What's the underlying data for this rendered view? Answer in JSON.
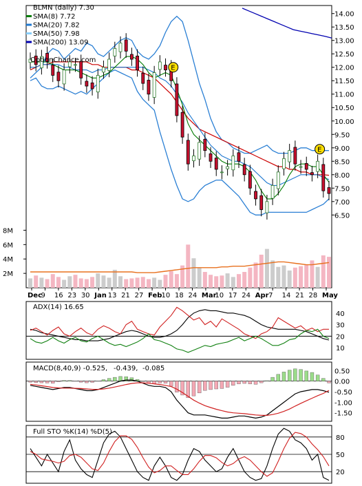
{
  "chart_data": [
    {
      "type": "candlestick",
      "title": "BLMN (daily) 7.30",
      "watermark": "OptionChance.com",
      "legend": [
        {
          "label": "SMA(8) 7.72",
          "color": "#007a00"
        },
        {
          "label": "SMA(20) 7.82",
          "color": "#1e78d0"
        },
        {
          "label": "SMA(50) 7.98",
          "color": "#87cefa"
        },
        {
          "label": "SMA(200) 13.09",
          "color": "#0000b0"
        }
      ],
      "y_ticks": [
        "14.00",
        "13.50",
        "13.00",
        "12.50",
        "12.00",
        "11.50",
        "11.00",
        "10.50",
        "10.00",
        "9.50",
        "9.00",
        "8.50",
        "8.00",
        "7.50",
        "7.00",
        "6.50"
      ],
      "ylim": [
        6.2,
        14.3
      ],
      "earnings_markers": [
        "E",
        "E"
      ],
      "x_ticks": [
        "Dec",
        "9",
        "16",
        "23",
        "30",
        "Jan",
        "13",
        "21",
        "27",
        "Feb",
        "10",
        "18",
        "24",
        "Mar",
        "10",
        "17",
        "24",
        "Apr",
        "7",
        "14",
        "21",
        "28",
        "May"
      ],
      "candles_close": [
        12.3,
        12.1,
        12.4,
        12.2,
        11.7,
        11.5,
        11.9,
        12.2,
        12.1,
        11.6,
        11.3,
        11.2,
        11.7,
        12.0,
        12.3,
        12.7,
        12.9,
        12.6,
        12.3,
        11.9,
        11.4,
        11.0,
        11.8,
        12.2,
        11.9,
        11.5,
        10.2,
        9.4,
        8.4,
        8.7,
        9.2,
        8.9,
        8.5,
        8.2,
        8.1,
        8.3,
        8.7,
        8.5,
        8.0,
        7.5,
        7.1,
        6.7,
        7.0,
        7.6,
        8.1,
        8.6,
        8.9,
        8.4,
        8.3,
        8.2,
        8.0,
        8.5,
        7.4,
        7.3
      ],
      "sma8": [
        12.2,
        12.2,
        12.2,
        12.2,
        12.1,
        12.0,
        11.9,
        11.9,
        11.9,
        11.8,
        11.7,
        11.6,
        11.6,
        11.7,
        11.8,
        12.0,
        12.2,
        12.4,
        12.4,
        12.3,
        12.1,
        11.8,
        11.6,
        11.7,
        11.8,
        11.7,
        11.2,
        10.6,
        9.9,
        9.5,
        9.3,
        9.1,
        8.9,
        8.7,
        8.5,
        8.4,
        8.4,
        8.4,
        8.3,
        8.1,
        7.8,
        7.4,
        7.1,
        7.1,
        7.3,
        7.6,
        8.0,
        8.3,
        8.4,
        8.4,
        8.3,
        8.3,
        8.0,
        7.72
      ],
      "sma20": [
        12.0,
        12.0,
        12.1,
        12.1,
        12.1,
        12.1,
        12.0,
        12.0,
        11.9,
        11.9,
        11.9,
        11.8,
        11.9,
        11.9,
        12.0,
        12.0,
        12.0,
        12.0,
        12.0,
        12.0,
        12.0,
        11.9,
        11.8,
        11.6,
        11.5,
        11.3,
        11.0,
        10.7,
        10.3,
        10.0,
        9.7,
        9.4,
        9.1,
        8.9,
        8.7,
        8.6,
        8.5,
        8.5,
        8.4,
        8.3,
        8.1,
        7.9,
        7.7,
        7.6,
        7.6,
        7.7,
        7.8,
        7.9,
        8.0,
        8.0,
        8.0,
        8.0,
        7.9,
        7.82
      ],
      "sma50": [
        11.9,
        12.0,
        12.1,
        12.1,
        12.2,
        12.2,
        12.2,
        12.2,
        12.2,
        12.2,
        12.2,
        12.1,
        12.1,
        12.0,
        12.0,
        12.0,
        12.0,
        12.0,
        11.9,
        11.9,
        11.8,
        11.7,
        11.6,
        11.4,
        11.2,
        11.0,
        10.7,
        10.4,
        10.1,
        9.9,
        9.7,
        9.6,
        9.5,
        9.4,
        9.3,
        9.2,
        9.1,
        9.0,
        8.9,
        8.8,
        8.7,
        8.6,
        8.5,
        8.4,
        8.3,
        8.3,
        8.2,
        8.2,
        8.1,
        8.1,
        8.0,
        8.0,
        8.0,
        7.98
      ],
      "sma200_segment": [
        14.2,
        14.1,
        14.0,
        13.9,
        13.8,
        13.7,
        13.6,
        13.5,
        13.4,
        13.35,
        13.3,
        13.25,
        13.2,
        13.15,
        13.09
      ],
      "bb_upper": [
        11.6,
        11.8,
        12.0,
        12.5,
        12.7,
        12.6,
        12.3,
        12.5,
        12.7,
        12.6,
        12.9,
        12.8,
        12.5,
        12.4,
        12.6,
        12.8,
        13.0,
        13.1,
        13.0,
        12.6,
        12.4,
        12.3,
        12.5,
        12.8,
        13.3,
        13.7,
        13.9,
        13.7,
        13.0,
        12.2,
        11.4,
        10.8,
        10.1,
        9.6,
        9.3,
        9.2,
        9.0,
        8.9,
        8.8,
        8.8,
        8.9,
        9.0,
        9.1,
        8.9,
        8.8,
        8.8,
        8.8,
        8.9,
        9.0,
        9.0,
        8.9,
        8.9,
        8.9,
        8.9
      ],
      "bb_lower": [
        11.5,
        11.6,
        11.3,
        11.2,
        11.2,
        11.3,
        11.2,
        11.1,
        11.0,
        11.1,
        11.0,
        11.2,
        11.4,
        11.6,
        11.8,
        11.9,
        11.8,
        11.7,
        11.6,
        11.1,
        10.8,
        10.6,
        10.4,
        9.6,
        8.9,
        8.2,
        7.6,
        7.1,
        7.0,
        7.1,
        7.4,
        7.6,
        7.7,
        7.8,
        7.8,
        7.6,
        7.4,
        7.2,
        6.9,
        6.6,
        6.5,
        6.5,
        6.6,
        6.6,
        6.6,
        6.6,
        6.6,
        6.6,
        6.6,
        6.6,
        6.7,
        6.8,
        6.9,
        7.1
      ]
    },
    {
      "type": "bar",
      "name": "volume",
      "y_ticks": [
        "8M",
        "6M",
        "4M",
        "2M"
      ],
      "ylim": [
        0,
        9
      ],
      "values": [
        1.3,
        1.7,
        1.4,
        1.2,
        1.9,
        1.5,
        1.1,
        1.6,
        1.8,
        1.3,
        1.2,
        1.5,
        2.0,
        1.7,
        1.4,
        2.5,
        1.6,
        1.2,
        1.3,
        1.4,
        1.5,
        1.2,
        1.4,
        1.1,
        1.8,
        2.3,
        1.9,
        3.1,
        6.0,
        4.1,
        2.8,
        2.2,
        1.8,
        1.6,
        1.7,
        2.0,
        1.5,
        1.9,
        2.2,
        2.8,
        3.5,
        4.6,
        5.4,
        3.8,
        2.9,
        3.1,
        2.4,
        2.8,
        3.0,
        3.2,
        3.8,
        2.9,
        4.5,
        4.3
      ],
      "avg_line": [
        2.2,
        2.2,
        2.2,
        2.2,
        2.2,
        2.2,
        2.2,
        2.2,
        2.2,
        2.2,
        2.2,
        2.2,
        2.2,
        2.2,
        2.2,
        2.2,
        2.2,
        2.2,
        2.2,
        2.1,
        2.1,
        2.1,
        2.1,
        2.2,
        2.3,
        2.4,
        2.5,
        2.6,
        2.7,
        2.8,
        2.8,
        2.8,
        2.8,
        2.8,
        2.9,
        2.9,
        3.0,
        3.0,
        3.0,
        3.1,
        3.2,
        3.3,
        3.4,
        3.5,
        3.6,
        3.6,
        3.5,
        3.4,
        3.3,
        3.2,
        3.2,
        3.3,
        3.4,
        3.5
      ]
    },
    {
      "type": "line",
      "title": "ADX(14) 16.65",
      "y_ticks": [
        "40",
        "30",
        "20",
        "10"
      ],
      "ylim": [
        0,
        50
      ],
      "series": [
        {
          "color": "#000000",
          "values": [
            26,
            25,
            23,
            22,
            21,
            20,
            19,
            18,
            17,
            17,
            16,
            16,
            16,
            17,
            18,
            20,
            22,
            24,
            25,
            24,
            22,
            20,
            19,
            19,
            20,
            22,
            25,
            30,
            36,
            40,
            42,
            43,
            42,
            42,
            41,
            40,
            40,
            39,
            38,
            36,
            33,
            30,
            28,
            27,
            26,
            26,
            26,
            26,
            25,
            24,
            22,
            20,
            18,
            16.65
          ]
        },
        {
          "color": "#d02020",
          "values": [
            25,
            27,
            24,
            21,
            25,
            28,
            22,
            20,
            24,
            27,
            23,
            21,
            26,
            29,
            27,
            24,
            22,
            30,
            33,
            26,
            24,
            22,
            21,
            28,
            33,
            38,
            45,
            42,
            38,
            34,
            36,
            30,
            33,
            28,
            35,
            32,
            29,
            26,
            22,
            20,
            18,
            22,
            24,
            28,
            36,
            33,
            30,
            27,
            29,
            25,
            27,
            24,
            26,
            26
          ]
        },
        {
          "color": "#108010",
          "values": [
            18,
            15,
            14,
            16,
            19,
            16,
            14,
            17,
            19,
            16,
            15,
            18,
            20,
            17,
            14,
            12,
            13,
            11,
            13,
            15,
            18,
            22,
            17,
            16,
            14,
            12,
            9,
            8,
            6,
            8,
            10,
            12,
            11,
            13,
            14,
            15,
            17,
            19,
            16,
            18,
            20,
            18,
            15,
            12,
            12,
            14,
            17,
            18,
            22,
            25,
            24,
            26,
            20,
            18
          ]
        }
      ],
      "hline": 20
    },
    {
      "type": "line",
      "title": "MACD(8,40,9) -0.525,",
      "values_text": [
        "-0.439,",
        "-0.085"
      ],
      "values_colors": [
        "#e00000",
        "#0044cc"
      ],
      "y_ticks": [
        "0.50",
        "0.00",
        "-0.50",
        "-1.00",
        "-1.50"
      ],
      "ylim": [
        -1.9,
        0.9
      ],
      "series": [
        {
          "color": "#000000",
          "values": [
            -0.2,
            -0.25,
            -0.3,
            -0.35,
            -0.4,
            -0.35,
            -0.3,
            -0.3,
            -0.35,
            -0.4,
            -0.45,
            -0.45,
            -0.4,
            -0.3,
            -0.2,
            -0.1,
            0.0,
            0.05,
            0.05,
            0.0,
            -0.1,
            -0.2,
            -0.25,
            -0.25,
            -0.3,
            -0.5,
            -0.9,
            -1.2,
            -1.5,
            -1.6,
            -1.6,
            -1.6,
            -1.65,
            -1.7,
            -1.75,
            -1.75,
            -1.7,
            -1.65,
            -1.65,
            -1.7,
            -1.75,
            -1.7,
            -1.6,
            -1.4,
            -1.2,
            -1.0,
            -0.8,
            -0.6,
            -0.5,
            -0.45,
            -0.4,
            -0.4,
            -0.45,
            -0.525
          ]
        },
        {
          "color": "#d02020",
          "values": [
            -0.15,
            -0.18,
            -0.22,
            -0.26,
            -0.3,
            -0.32,
            -0.33,
            -0.33,
            -0.34,
            -0.35,
            -0.37,
            -0.39,
            -0.39,
            -0.37,
            -0.33,
            -0.28,
            -0.22,
            -0.16,
            -0.11,
            -0.08,
            -0.08,
            -0.1,
            -0.13,
            -0.16,
            -0.2,
            -0.26,
            -0.38,
            -0.54,
            -0.72,
            -0.9,
            -1.04,
            -1.16,
            -1.25,
            -1.33,
            -1.4,
            -1.46,
            -1.5,
            -1.52,
            -1.54,
            -1.57,
            -1.6,
            -1.62,
            -1.62,
            -1.58,
            -1.52,
            -1.43,
            -1.32,
            -1.18,
            -1.05,
            -0.93,
            -0.81,
            -0.69,
            -0.58,
            -0.439
          ]
        }
      ]
    },
    {
      "type": "line",
      "title": "Full STO %K(14) %D(5)",
      "y_ticks": [
        "80",
        "50",
        "20"
      ],
      "ylim": [
        0,
        100
      ],
      "series": [
        {
          "color": "#000000",
          "values": [
            60,
            45,
            30,
            50,
            35,
            20,
            55,
            75,
            40,
            25,
            15,
            10,
            40,
            70,
            85,
            90,
            80,
            60,
            40,
            20,
            10,
            5,
            30,
            45,
            30,
            10,
            5,
            15,
            40,
            60,
            55,
            40,
            30,
            20,
            25,
            45,
            60,
            40,
            20,
            10,
            5,
            8,
            30,
            60,
            85,
            95,
            90,
            75,
            70,
            60,
            40,
            50,
            10,
            5
          ]
        },
        {
          "color": "#d02020",
          "values": [
            55,
            50,
            42,
            40,
            38,
            35,
            38,
            48,
            50,
            45,
            35,
            25,
            22,
            35,
            55,
            72,
            82,
            82,
            76,
            62,
            44,
            28,
            18,
            22,
            30,
            30,
            22,
            15,
            15,
            25,
            38,
            48,
            48,
            44,
            36,
            30,
            34,
            42,
            46,
            40,
            30,
            20,
            12,
            18,
            38,
            60,
            78,
            88,
            86,
            80,
            68,
            58,
            46,
            30
          ]
        }
      ],
      "hlines": [
        80,
        20
      ]
    }
  ]
}
